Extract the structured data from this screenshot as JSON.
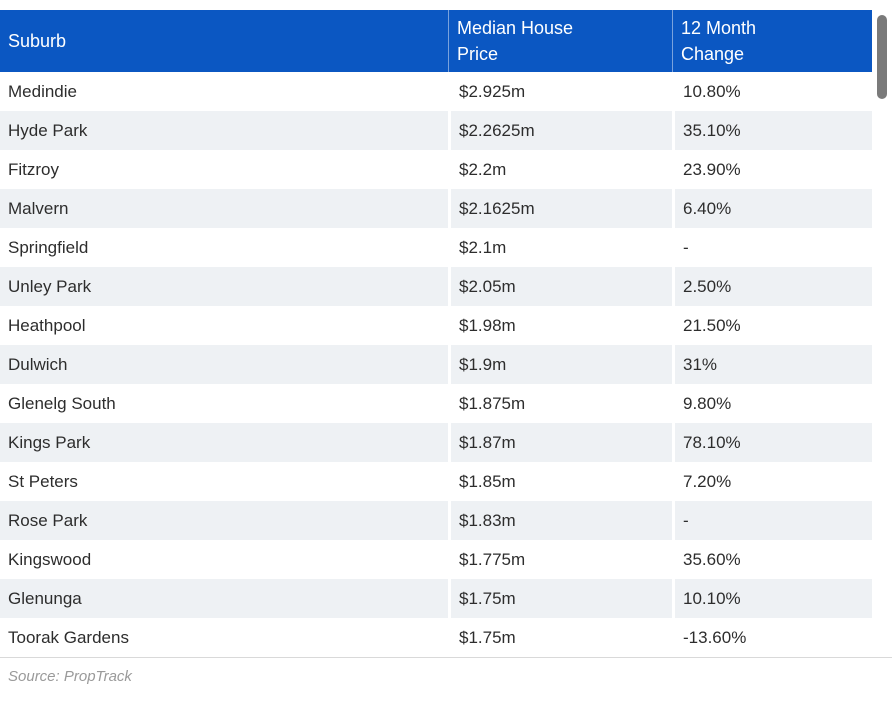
{
  "chart_data": {
    "type": "table",
    "columns": [
      "Suburb",
      "Median House Price",
      "12 Month Change"
    ],
    "rows": [
      [
        "Medindie",
        "$2.925m",
        "10.80%"
      ],
      [
        "Hyde Park",
        "$2.2625m",
        "35.10%"
      ],
      [
        "Fitzroy",
        "$2.2m",
        "23.90%"
      ],
      [
        "Malvern",
        "$2.1625m",
        "6.40%"
      ],
      [
        "Springfield",
        "$2.1m",
        "-"
      ],
      [
        "Unley Park",
        "$2.05m",
        "2.50%"
      ],
      [
        "Heathpool",
        "$1.98m",
        "21.50%"
      ],
      [
        "Dulwich",
        "$1.9m",
        "31%"
      ],
      [
        "Glenelg South",
        "$1.875m",
        "9.80%"
      ],
      [
        "Kings Park",
        "$1.87m",
        "78.10%"
      ],
      [
        "St Peters",
        "$1.85m",
        "7.20%"
      ],
      [
        "Rose Park",
        "$1.83m",
        "-"
      ],
      [
        "Kingswood",
        "$1.775m",
        "35.60%"
      ],
      [
        "Glenunga",
        "$1.75m",
        "10.10%"
      ],
      [
        "Toorak Gardens",
        "$1.75m",
        "-13.60%"
      ]
    ],
    "source": "Source: PropTrack"
  },
  "header_display": {
    "suburb": "Suburb",
    "price": "Median House\nPrice",
    "change": "12 Month\nChange"
  },
  "footer": {
    "source_label": "Source: PropTrack"
  },
  "colors": {
    "header_bg": "#0b57c2",
    "row_stripe": "#eef1f4",
    "body_text": "#2d2d2d",
    "source_text": "#9a9a9a",
    "scrollbar_thumb": "#7a7a7a"
  }
}
